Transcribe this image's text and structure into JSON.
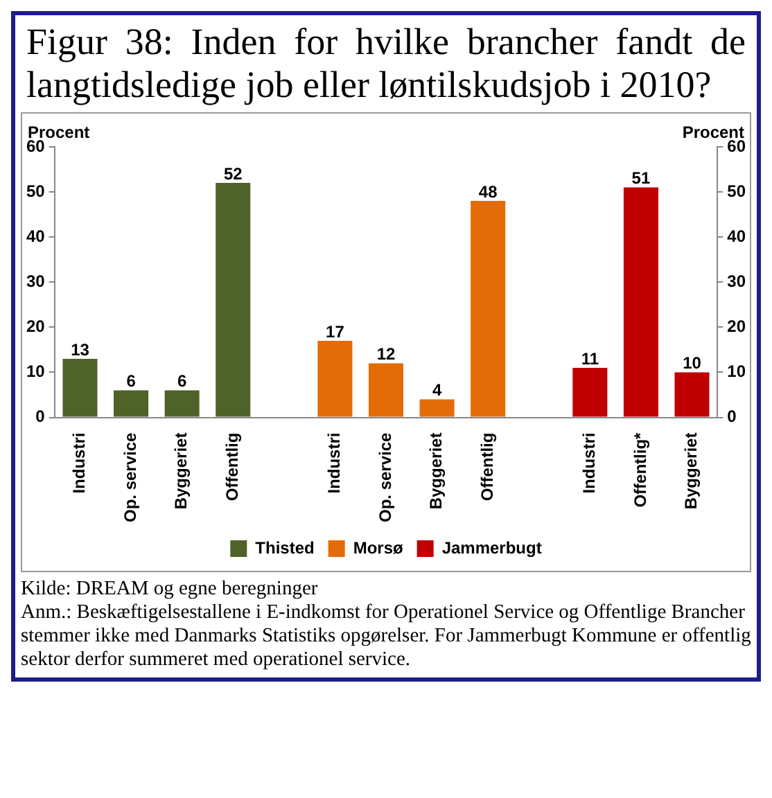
{
  "chart_data": {
    "type": "bar",
    "title": "Figur 38: Inden for hvilke brancher fandt de langtidsledige job eller løntilskudsjob i 2010?",
    "categories": [
      "Industri",
      "Op. service",
      "Byggeriet",
      "Offentlig",
      null,
      "Industri",
      "Op. service",
      "Byggeriet",
      "Offentlig",
      null,
      "Industri",
      "Offentlig*",
      "Byggeriet"
    ],
    "series": [
      {
        "name": "Thisted",
        "color": "#4f6228",
        "values": [
          13,
          6,
          6,
          52,
          null,
          null,
          null,
          null,
          null,
          null,
          null,
          null,
          null
        ]
      },
      {
        "name": "Morsø",
        "color": "#e36c09",
        "values": [
          null,
          null,
          null,
          null,
          null,
          17,
          12,
          4,
          48,
          null,
          null,
          null,
          null
        ]
      },
      {
        "name": "Jammerbugt",
        "color": "#c00000",
        "values": [
          null,
          null,
          null,
          null,
          null,
          null,
          null,
          null,
          null,
          null,
          11,
          51,
          10
        ]
      }
    ],
    "ylabel": "Procent",
    "y2label": "Procent",
    "ylim": [
      0,
      60
    ],
    "yticks": [
      0,
      10,
      20,
      30,
      40,
      50,
      60
    ],
    "y2lim": [
      0,
      60
    ],
    "y2ticks": [
      0,
      10,
      20,
      30,
      40,
      50,
      60
    ],
    "data_labels": true,
    "legend": "bottom",
    "grid": false,
    "annotations": [
      "Kilde: DREAM og egne beregninger",
      "Anm.: Beskæftigelsestallene i E-indkomst for Operationel Service og Offentlige Brancher stemmer ikke med Danmarks Statistiks opgørelser. For Jammerbugt Kommune er offentlig sektor derfor summeret med operationel service."
    ]
  }
}
